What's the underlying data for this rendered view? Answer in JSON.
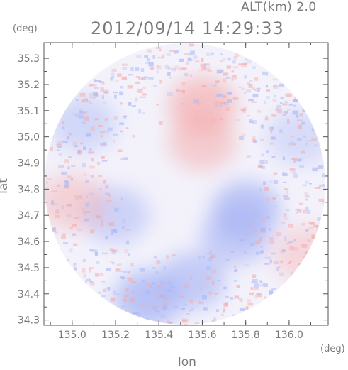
{
  "header": {
    "altitude": "ALT(km) 2.0",
    "datetime": "2012/09/14 14:29:33"
  },
  "axes": {
    "y_unit": "(deg)",
    "x_unit": "(deg)",
    "y_name": "lat",
    "x_name": "lon"
  },
  "chart_data": {
    "type": "heatmap",
    "title": "2012/09/14 14:29:33",
    "subtitle": "ALT(km) 2.0",
    "xlabel": "lon",
    "ylabel": "lat",
    "xunit": "(deg)",
    "yunit": "(deg)",
    "xlim": [
      134.87,
      136.18
    ],
    "ylim": [
      34.28,
      35.36
    ],
    "x_ticks": [
      135.0,
      135.2,
      135.4,
      135.6,
      135.8,
      136.0
    ],
    "x_tick_labels": [
      "135.0",
      "135.2",
      "135.4",
      "135.6",
      "135.8",
      "136.0"
    ],
    "y_ticks": [
      34.3,
      34.4,
      34.5,
      34.6,
      34.7,
      34.8,
      34.9,
      35.0,
      35.1,
      35.2,
      35.3
    ],
    "y_tick_labels": [
      "34.3",
      "34.4",
      "34.5",
      "34.6",
      "34.7",
      "34.8",
      "34.9",
      "35.0",
      "35.1",
      "35.2",
      "35.3"
    ],
    "radar_center": [
      135.52,
      34.82
    ],
    "grid": false,
    "colormap": {
      "positive": "#f4a9a9",
      "negative": "#a9b6f4",
      "zero": "#f3f2fb"
    },
    "regions": [
      {
        "lon": 135.6,
        "lat": 35.12,
        "value": 0.5
      },
      {
        "lon": 135.6,
        "lat": 34.98,
        "value": 0.4
      },
      {
        "lon": 135.8,
        "lat": 34.72,
        "value": -0.6
      },
      {
        "lon": 135.75,
        "lat": 34.62,
        "value": -0.5
      },
      {
        "lon": 135.55,
        "lat": 34.45,
        "value": -0.5
      },
      {
        "lon": 135.35,
        "lat": 34.38,
        "value": -0.6
      },
      {
        "lon": 135.2,
        "lat": 34.7,
        "value": -0.4
      },
      {
        "lon": 135.05,
        "lat": 35.05,
        "value": -0.35
      },
      {
        "lon": 136.05,
        "lat": 35.0,
        "value": -0.3
      },
      {
        "lon": 135.0,
        "lat": 34.75,
        "value": 0.35
      },
      {
        "lon": 136.08,
        "lat": 34.55,
        "value": 0.3
      }
    ]
  }
}
